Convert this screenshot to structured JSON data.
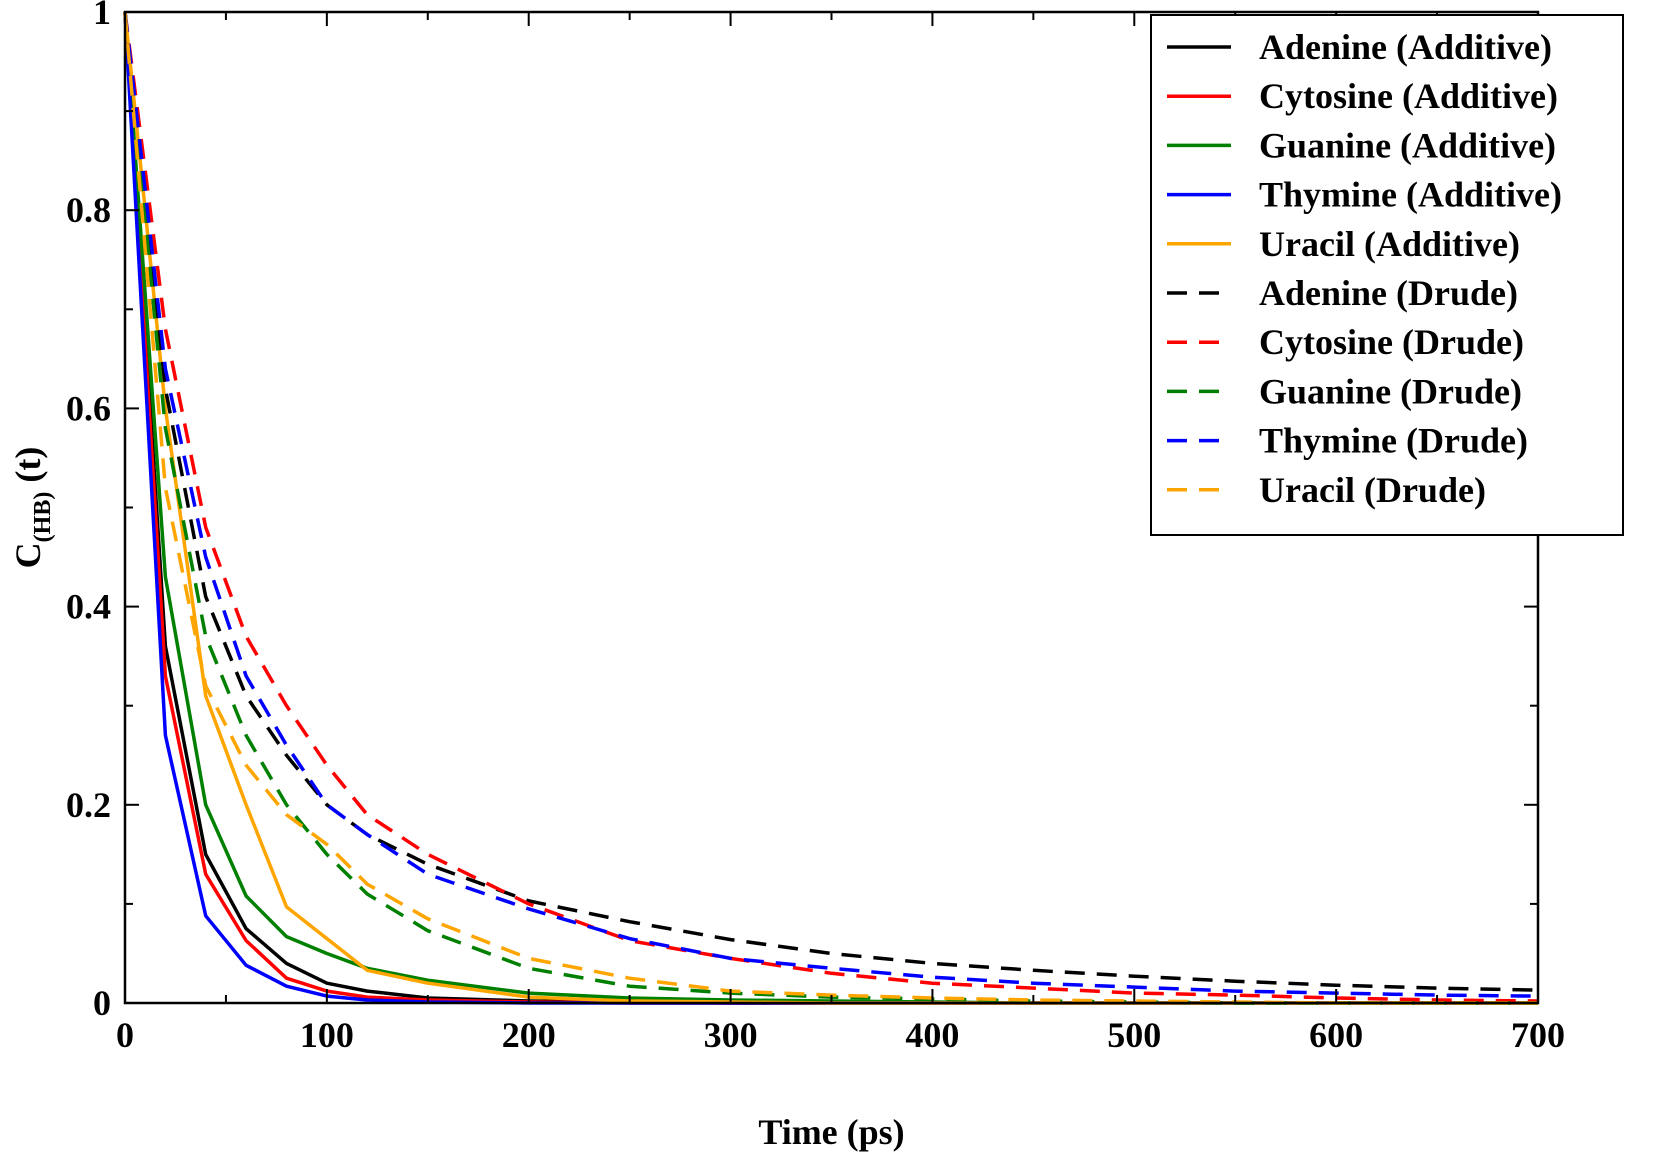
{
  "chart_data": {
    "type": "line",
    "xlabel": "Time (ps)",
    "ylabel": "C",
    "ylabel_sub": "(HB)",
    "ylabel_suffix": " (t)",
    "xlim": [
      0,
      700
    ],
    "ylim": [
      0,
      1
    ],
    "x_ticks": [
      0,
      100,
      200,
      300,
      400,
      500,
      600,
      700
    ],
    "y_ticks": [
      0,
      0.2,
      0.4,
      0.6,
      0.8,
      1
    ],
    "y_tick_labels": [
      "0",
      "0.2",
      "0.4",
      "0.6",
      "0.8",
      "1"
    ],
    "x_tick_labels": [
      "0",
      "100",
      "200",
      "300",
      "400",
      "500",
      "600",
      "700"
    ],
    "grid": false,
    "legend_position": "top-right",
    "x": [
      0,
      20,
      40,
      60,
      80,
      100,
      120,
      150,
      200,
      250,
      300,
      350,
      400,
      450,
      500,
      550,
      600,
      650,
      700
    ],
    "series": [
      {
        "name": "Adenine (Additive)",
        "color": "#000000",
        "dash": "solid",
        "values": [
          1.0,
          0.36,
          0.15,
          0.075,
          0.04,
          0.02,
          0.012,
          0.005,
          0.002,
          0.001,
          0.0,
          0.0,
          0.0,
          0.0,
          0.0,
          0.0,
          0.0,
          0.0,
          0.0
        ]
      },
      {
        "name": "Cytosine (Additive)",
        "color": "#ff0000",
        "dash": "solid",
        "values": [
          1.0,
          0.33,
          0.13,
          0.063,
          0.025,
          0.012,
          0.006,
          0.003,
          0.001,
          0.0,
          0.0,
          0.0,
          0.0,
          0.0,
          0.0,
          0.0,
          0.0,
          0.0,
          0.0
        ]
      },
      {
        "name": "Guanine (Additive)",
        "color": "#008000",
        "dash": "solid",
        "values": [
          1.0,
          0.43,
          0.2,
          0.108,
          0.067,
          0.05,
          0.035,
          0.023,
          0.01,
          0.005,
          0.003,
          0.002,
          0.001,
          0.0,
          0.0,
          0.0,
          0.0,
          0.0,
          0.0
        ]
      },
      {
        "name": "Thymine (Additive)",
        "color": "#0000ff",
        "dash": "solid",
        "values": [
          1.0,
          0.27,
          0.088,
          0.038,
          0.017,
          0.007,
          0.003,
          0.001,
          0.0,
          0.0,
          0.0,
          0.0,
          0.0,
          0.0,
          0.0,
          0.0,
          0.0,
          0.0,
          0.0
        ]
      },
      {
        "name": "Uracil (Additive)",
        "color": "#ffa500",
        "dash": "solid",
        "values": [
          1.0,
          0.6,
          0.31,
          0.2,
          0.097,
          0.065,
          0.033,
          0.02,
          0.006,
          0.002,
          0.001,
          0.0,
          0.0,
          0.0,
          0.0,
          0.0,
          0.0,
          0.0,
          0.0
        ]
      },
      {
        "name": "Adenine (Drude)",
        "color": "#000000",
        "dash": "dashed",
        "values": [
          1.0,
          0.62,
          0.41,
          0.31,
          0.25,
          0.2,
          0.17,
          0.14,
          0.103,
          0.082,
          0.064,
          0.05,
          0.04,
          0.033,
          0.027,
          0.022,
          0.018,
          0.015,
          0.013
        ]
      },
      {
        "name": "Cytosine (Drude)",
        "color": "#ff0000",
        "dash": "dashed",
        "values": [
          1.0,
          0.68,
          0.48,
          0.37,
          0.3,
          0.24,
          0.19,
          0.15,
          0.1,
          0.063,
          0.045,
          0.03,
          0.02,
          0.015,
          0.01,
          0.008,
          0.005,
          0.003,
          0.002
        ]
      },
      {
        "name": "Guanine (Drude)",
        "color": "#008000",
        "dash": "dashed",
        "values": [
          1.0,
          0.58,
          0.37,
          0.27,
          0.2,
          0.15,
          0.11,
          0.073,
          0.035,
          0.017,
          0.01,
          0.006,
          0.004,
          0.002,
          0.001,
          0.0,
          0.0,
          0.0,
          0.0
        ]
      },
      {
        "name": "Thymine (Drude)",
        "color": "#0000ff",
        "dash": "dashed",
        "values": [
          1.0,
          0.64,
          0.45,
          0.33,
          0.26,
          0.2,
          0.17,
          0.13,
          0.095,
          0.065,
          0.045,
          0.035,
          0.026,
          0.02,
          0.016,
          0.012,
          0.01,
          0.008,
          0.007
        ]
      },
      {
        "name": "Uracil (Drude)",
        "color": "#ffa500",
        "dash": "dashed",
        "values": [
          1.0,
          0.52,
          0.32,
          0.24,
          0.19,
          0.16,
          0.12,
          0.085,
          0.045,
          0.025,
          0.012,
          0.008,
          0.005,
          0.003,
          0.002,
          0.001,
          0.0,
          0.0,
          0.0
        ]
      }
    ]
  }
}
